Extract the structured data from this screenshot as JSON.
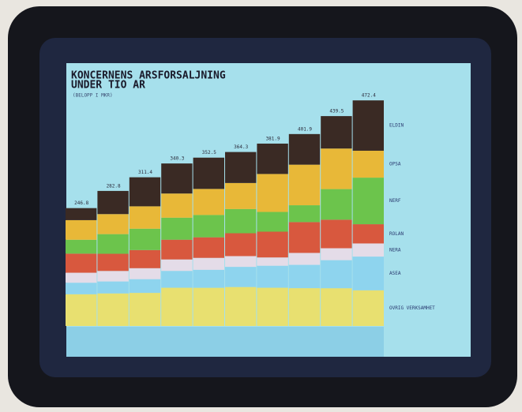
{
  "chart_data": {
    "type": "stacked-bar",
    "title": [
      "KONCERNENS ARSFORSALJNING",
      "UNDER TIO AR"
    ],
    "subtitle": "(BELOPP I MKR)",
    "categories": [
      null,
      null,
      null,
      null,
      null,
      null,
      null,
      null,
      null,
      null
    ],
    "totals": [
      246.8,
      282.8,
      311.4,
      340.3,
      352.5,
      364.3,
      381.9,
      401.9,
      439.5,
      472.4
    ],
    "series": [
      {
        "name": "OVRIG VERKSAMHET",
        "color": "#e8e070",
        "values": [
          66.5,
          68.2,
          69.3,
          80.1,
          80.0,
          81.6,
          80.1,
          79.2,
          79.1,
          74.8
        ]
      },
      {
        "name": "ASEA",
        "color": "#8ed4ee",
        "values": [
          24.0,
          25.0,
          28.7,
          35.2,
          37.6,
          42.2,
          46.0,
          48.8,
          58.7,
          70.5
        ]
      },
      {
        "name": "NERA",
        "color": "#e4dce8",
        "values": [
          21.0,
          22.0,
          23.0,
          24.0,
          25.0,
          22.5,
          17.4,
          25.0,
          25.0,
          27.5
        ]
      },
      {
        "name": "ROLAN",
        "color": "#d8583e",
        "values": [
          40.0,
          36.0,
          38.0,
          41.4,
          43.1,
          47.9,
          54.0,
          64.6,
          59.8,
          40.3
        ]
      },
      {
        "name": "NERF",
        "color": "#6cc44c",
        "values": [
          29.0,
          41.1,
          44.6,
          46.0,
          46.7,
          50.6,
          41.3,
          35.2,
          64.0,
          97.5
        ]
      },
      {
        "name": "OPSA",
        "color": "#e8b838",
        "values": [
          41.1,
          42.0,
          47.0,
          50.7,
          54.6,
          54.6,
          79.5,
          85.0,
          85.0,
          56.4
        ]
      },
      {
        "name": "ELDIN",
        "color": "#3a2a24",
        "values": [
          25.2,
          48.5,
          60.8,
          62.9,
          65.5,
          64.9,
          63.6,
          64.1,
          67.9,
          105.4
        ]
      }
    ]
  }
}
